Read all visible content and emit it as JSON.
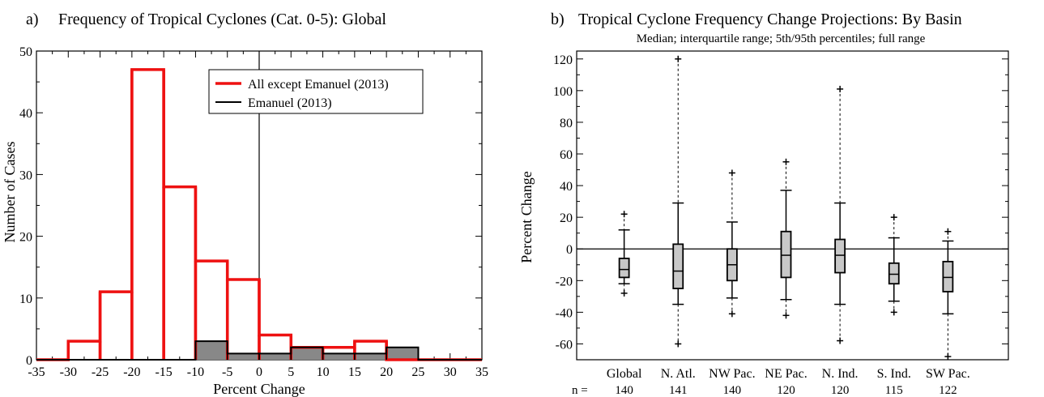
{
  "panel_a": {
    "label": "a)",
    "title": "Frequency of Tropical Cyclones (Cat. 0-5):  Global"
  },
  "panel_b": {
    "label": "b)",
    "title": "Tropical Cyclone Frequency Change Projections:  By Basin",
    "subtitle": "Median; interquartile range; 5th/95th percentiles; full range",
    "n_label": "n ="
  },
  "colors": {
    "red_series": "#ee1111",
    "black_series": "#000000",
    "box_fill": "#c8c8c8",
    "hist_fill": "#888888"
  },
  "chart_data": [
    {
      "type": "bar",
      "title": "Frequency of Tropical Cyclones (Cat. 0-5):  Global",
      "xlabel": "Percent Change",
      "ylabel": "Number of Cases",
      "xlim": [
        -35,
        35
      ],
      "ylim": [
        0,
        50
      ],
      "xticks": [
        -35,
        -30,
        -25,
        -20,
        -15,
        -10,
        -5,
        0,
        5,
        10,
        15,
        20,
        25,
        30,
        35
      ],
      "yticks": [
        0,
        10,
        20,
        30,
        40,
        50
      ],
      "bin_edges": [
        -35,
        -30,
        -25,
        -20,
        -15,
        -10,
        -5,
        0,
        5,
        10,
        15,
        20,
        25,
        30,
        35
      ],
      "legend_position": "top-right",
      "series": [
        {
          "name": "All except Emanuel (2013)",
          "color": "#ee1111",
          "values": [
            0,
            3,
            11,
            47,
            28,
            16,
            13,
            4,
            2,
            2,
            3,
            0,
            0,
            0
          ]
        },
        {
          "name": "Emanuel (2013)",
          "color": "#000000",
          "values": [
            0,
            0,
            0,
            0,
            0,
            3,
            1,
            1,
            2,
            1,
            1,
            2,
            0,
            0
          ]
        }
      ],
      "zero_line": 0
    },
    {
      "type": "box",
      "title": "Tropical Cyclone Frequency Change Projections:  By Basin",
      "subtitle": "Median; interquartile range; 5th/95th percentiles; full range",
      "ylabel": "Percent Change",
      "ylim": [
        -70,
        125
      ],
      "yticks": [
        -60,
        -40,
        -20,
        0,
        20,
        40,
        60,
        80,
        100,
        120
      ],
      "categories": [
        "Global",
        "N. Atl.",
        "NW Pac.",
        "NE Pac.",
        "N. Ind.",
        "S. Ind.",
        "SW Pac."
      ],
      "n": [
        "140",
        "141",
        "140",
        "120",
        "120",
        "115",
        "122"
      ],
      "min": [
        -28,
        -60,
        -41,
        -42,
        -58,
        -40,
        -68
      ],
      "p5": [
        -22,
        -35,
        -31,
        -32,
        -35,
        -33,
        -41
      ],
      "q1": [
        -18,
        -25,
        -20,
        -18,
        -15,
        -22,
        -27
      ],
      "median": [
        -13,
        -14,
        -10,
        -4,
        -4,
        -16,
        -18
      ],
      "q3": [
        -6,
        3,
        0,
        11,
        6,
        -9,
        -8
      ],
      "p95": [
        12,
        29,
        17,
        37,
        29,
        7,
        5
      ],
      "max": [
        22,
        120,
        48,
        55,
        101,
        20,
        11
      ],
      "zero_line": 0
    }
  ]
}
